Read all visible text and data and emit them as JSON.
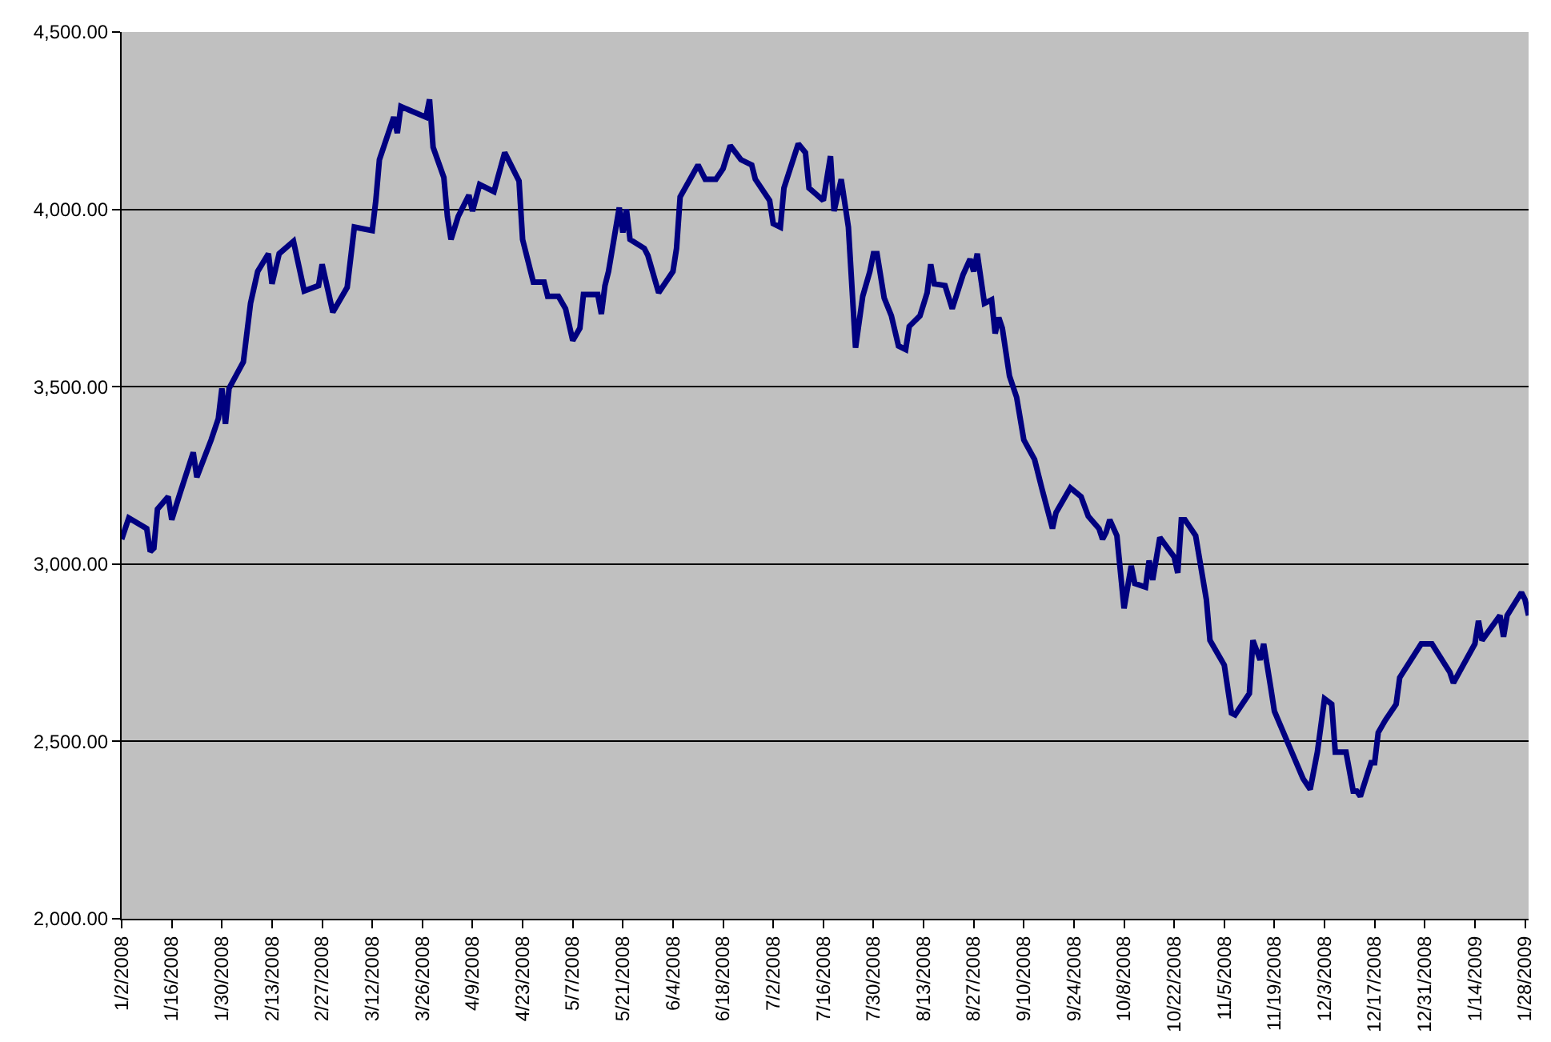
{
  "chart_data": {
    "type": "line",
    "x": [
      "2008-01-02",
      "2008-01-04",
      "2008-01-09",
      "2008-01-10",
      "2008-01-11",
      "2008-01-12",
      "2008-01-15",
      "2008-01-16",
      "2008-01-18",
      "2008-01-22",
      "2008-01-23",
      "2008-01-27",
      "2008-01-29",
      "2008-01-30",
      "2008-01-31",
      "2008-02-01",
      "2008-02-05",
      "2008-02-07",
      "2008-02-09",
      "2008-02-12",
      "2008-02-13",
      "2008-02-15",
      "2008-02-19",
      "2008-02-22",
      "2008-02-26",
      "2008-02-27",
      "2008-03-01",
      "2008-03-05",
      "2008-03-07",
      "2008-03-12",
      "2008-03-13",
      "2008-03-14",
      "2008-03-18",
      "2008-03-19",
      "2008-03-20",
      "2008-03-27",
      "2008-03-28",
      "2008-03-29",
      "2008-04-01",
      "2008-04-02",
      "2008-04-03",
      "2008-04-05",
      "2008-04-08",
      "2008-04-09",
      "2008-04-11",
      "2008-04-15",
      "2008-04-18",
      "2008-04-22",
      "2008-04-23",
      "2008-04-26",
      "2008-04-29",
      "2008-04-30",
      "2008-05-03",
      "2008-05-05",
      "2008-05-07",
      "2008-05-09",
      "2008-05-10",
      "2008-05-14",
      "2008-05-15",
      "2008-05-16",
      "2008-05-17",
      "2008-05-20",
      "2008-05-21",
      "2008-05-22",
      "2008-05-23",
      "2008-05-27",
      "2008-05-28",
      "2008-05-31",
      "2008-06-04",
      "2008-06-05",
      "2008-06-06",
      "2008-06-11",
      "2008-06-13",
      "2008-06-16",
      "2008-06-18",
      "2008-06-20",
      "2008-06-23",
      "2008-06-26",
      "2008-06-27",
      "2008-07-01",
      "2008-07-02",
      "2008-07-04",
      "2008-07-05",
      "2008-07-09",
      "2008-07-11",
      "2008-07-12",
      "2008-07-16",
      "2008-07-18",
      "2008-07-19",
      "2008-07-21",
      "2008-07-23",
      "2008-07-25",
      "2008-07-27",
      "2008-07-29",
      "2008-07-30",
      "2008-07-31",
      "2008-08-02",
      "2008-08-04",
      "2008-08-06",
      "2008-08-08",
      "2008-08-09",
      "2008-08-12",
      "2008-08-14",
      "2008-08-15",
      "2008-08-16",
      "2008-08-19",
      "2008-08-21",
      "2008-08-24",
      "2008-08-26",
      "2008-08-27",
      "2008-08-28",
      "2008-08-30",
      "2008-09-01",
      "2008-09-02",
      "2008-09-03",
      "2008-09-04",
      "2008-09-06",
      "2008-09-08",
      "2008-09-10",
      "2008-09-13",
      "2008-09-15",
      "2008-09-18",
      "2008-09-19",
      "2008-09-23",
      "2008-09-26",
      "2008-09-28",
      "2008-10-01",
      "2008-10-02",
      "2008-10-03",
      "2008-10-04",
      "2008-10-06",
      "2008-10-08",
      "2008-10-10",
      "2008-10-11",
      "2008-10-14",
      "2008-10-15",
      "2008-10-16",
      "2008-10-18",
      "2008-10-22",
      "2008-10-23",
      "2008-10-24",
      "2008-10-25",
      "2008-10-28",
      "2008-10-31",
      "2008-11-01",
      "2008-11-05",
      "2008-11-07",
      "2008-11-08",
      "2008-11-12",
      "2008-11-13",
      "2008-11-15",
      "2008-11-16",
      "2008-11-18",
      "2008-11-19",
      "2008-11-23",
      "2008-11-27",
      "2008-11-29",
      "2008-12-01",
      "2008-12-03",
      "2008-12-05",
      "2008-12-06",
      "2008-12-09",
      "2008-12-11",
      "2008-12-12",
      "2008-12-13",
      "2008-12-16",
      "2008-12-17",
      "2008-12-18",
      "2008-12-20",
      "2008-12-23",
      "2008-12-24",
      "2008-12-30",
      "2009-01-02",
      "2009-01-07",
      "2009-01-08",
      "2009-01-14",
      "2009-01-15",
      "2009-01-16",
      "2009-01-21",
      "2009-01-22",
      "2009-01-23",
      "2009-01-27",
      "2009-01-28",
      "2009-01-29"
    ],
    "series": [
      {
        "color": "#000080",
        "values": [
          3070,
          3130,
          3100,
          3035,
          3045,
          3155,
          3190,
          3125,
          3190,
          3315,
          3245,
          3350,
          3410,
          3495,
          3395,
          3495,
          3570,
          3735,
          3825,
          3875,
          3790,
          3875,
          3910,
          3770,
          3785,
          3845,
          3710,
          3780,
          3950,
          3940,
          4025,
          4140,
          4260,
          4215,
          4290,
          4260,
          4310,
          4175,
          4090,
          3980,
          3915,
          3980,
          4040,
          3995,
          4070,
          4050,
          4160,
          4080,
          3915,
          3795,
          3795,
          3755,
          3755,
          3720,
          3630,
          3665,
          3760,
          3760,
          3705,
          3785,
          3825,
          4005,
          3935,
          4000,
          3915,
          3890,
          3870,
          3765,
          3825,
          3890,
          4035,
          4125,
          4085,
          4085,
          4115,
          4180,
          4140,
          4125,
          4085,
          4025,
          3960,
          3950,
          4060,
          4185,
          4160,
          4060,
          4025,
          4150,
          3995,
          4085,
          3950,
          3610,
          3755,
          3825,
          3875,
          3875,
          3750,
          3700,
          3615,
          3605,
          3670,
          3700,
          3765,
          3845,
          3790,
          3785,
          3720,
          3815,
          3860,
          3825,
          3875,
          3735,
          3745,
          3650,
          3695,
          3665,
          3530,
          3470,
          3350,
          3295,
          3215,
          3100,
          3145,
          3215,
          3190,
          3135,
          3100,
          3070,
          3090,
          3125,
          3080,
          2875,
          2995,
          2945,
          2935,
          3010,
          2955,
          3075,
          3020,
          2975,
          3125,
          3125,
          3080,
          2900,
          2785,
          2715,
          2580,
          2575,
          2635,
          2785,
          2730,
          2775,
          2650,
          2585,
          2490,
          2395,
          2365,
          2470,
          2620,
          2605,
          2470,
          2470,
          2360,
          2360,
          2345,
          2440,
          2440,
          2525,
          2560,
          2605,
          2680,
          2775,
          2775,
          2695,
          2665,
          2775,
          2840,
          2785,
          2855,
          2795,
          2855,
          2920,
          2900,
          2855
        ]
      }
    ],
    "xlim": [
      "2008-01-02",
      "2009-01-29"
    ],
    "xticks": [
      {
        "value": "2008-01-02",
        "label": "1/2/2008"
      },
      {
        "value": "2008-01-16",
        "label": "1/16/2008"
      },
      {
        "value": "2008-01-30",
        "label": "1/30/2008"
      },
      {
        "value": "2008-02-13",
        "label": "2/13/2008"
      },
      {
        "value": "2008-02-27",
        "label": "2/27/2008"
      },
      {
        "value": "2008-03-12",
        "label": "3/12/2008"
      },
      {
        "value": "2008-03-26",
        "label": "3/26/2008"
      },
      {
        "value": "2008-04-09",
        "label": "4/9/2008"
      },
      {
        "value": "2008-04-23",
        "label": "4/23/2008"
      },
      {
        "value": "2008-05-07",
        "label": "5/7/2008"
      },
      {
        "value": "2008-05-21",
        "label": "5/21/2008"
      },
      {
        "value": "2008-06-04",
        "label": "6/4/2008"
      },
      {
        "value": "2008-06-18",
        "label": "6/18/2008"
      },
      {
        "value": "2008-07-02",
        "label": "7/2/2008"
      },
      {
        "value": "2008-07-16",
        "label": "7/16/2008"
      },
      {
        "value": "2008-07-30",
        "label": "7/30/2008"
      },
      {
        "value": "2008-08-13",
        "label": "8/13/2008"
      },
      {
        "value": "2008-08-27",
        "label": "8/27/2008"
      },
      {
        "value": "2008-09-10",
        "label": "9/10/2008"
      },
      {
        "value": "2008-09-24",
        "label": "9/24/2008"
      },
      {
        "value": "2008-10-08",
        "label": "10/8/2008"
      },
      {
        "value": "2008-10-22",
        "label": "10/22/2008"
      },
      {
        "value": "2008-11-05",
        "label": "11/5/2008"
      },
      {
        "value": "2008-11-19",
        "label": "11/19/2008"
      },
      {
        "value": "2008-12-03",
        "label": "12/3/2008"
      },
      {
        "value": "2008-12-17",
        "label": "12/17/2008"
      },
      {
        "value": "2008-12-31",
        "label": "12/31/2008"
      },
      {
        "value": "2009-01-14",
        "label": "1/14/2009"
      },
      {
        "value": "2009-01-28",
        "label": "1/28/2009"
      }
    ],
    "ylim": [
      2000,
      4500
    ],
    "yticks": [
      {
        "value": 2000,
        "label": "2,000.00"
      },
      {
        "value": 2500,
        "label": "2,500.00"
      },
      {
        "value": 3000,
        "label": "3,000.00"
      },
      {
        "value": 3500,
        "label": "3,500.00"
      },
      {
        "value": 4000,
        "label": "4,000.00"
      },
      {
        "value": 4500,
        "label": "4,500.00"
      }
    ],
    "grid": "y",
    "marker": "none",
    "line_style": "solid"
  }
}
